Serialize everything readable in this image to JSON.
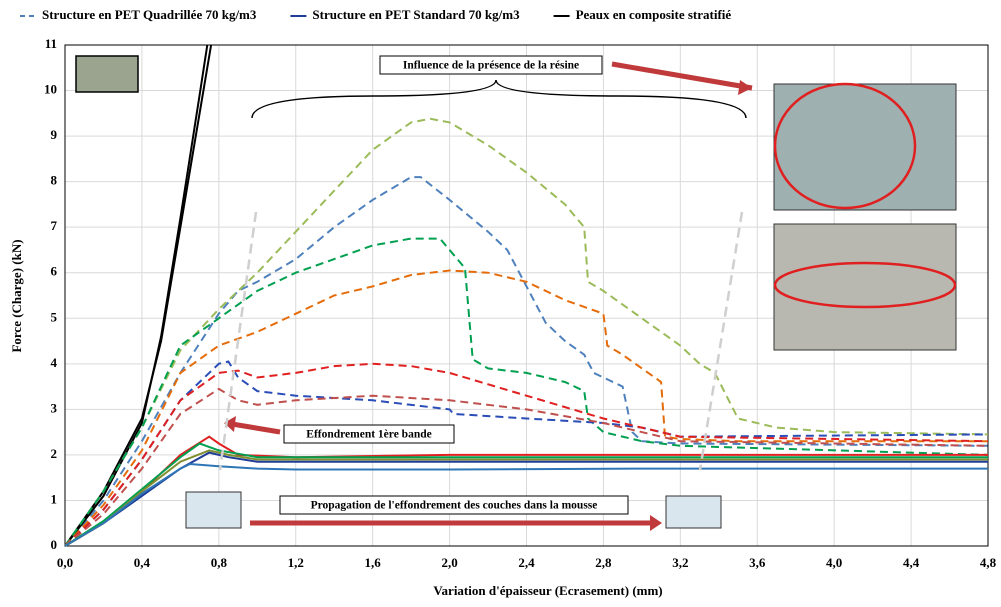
{
  "chart_data": {
    "type": "line",
    "x_label": "Variation d'épaisseur (Ecrasement) (mm)",
    "y_label": "Force (Charge) (kN)",
    "xlim": [
      0,
      4.8
    ],
    "ylim": [
      0,
      11
    ],
    "xticks": [
      {
        "value": 0,
        "label": "0,0"
      },
      {
        "value": 0.4,
        "label": "0,4"
      },
      {
        "value": 0.8,
        "label": "0,8"
      },
      {
        "value": 1.2,
        "label": "1,2"
      },
      {
        "value": 1.6,
        "label": "1,6"
      },
      {
        "value": 2.0,
        "label": "2,0"
      },
      {
        "value": 2.4,
        "label": "2,4"
      },
      {
        "value": 2.8,
        "label": "2,8"
      },
      {
        "value": 3.2,
        "label": "3,2"
      },
      {
        "value": 3.6,
        "label": "3,6"
      },
      {
        "value": 4.0,
        "label": "4,0"
      },
      {
        "value": 4.4,
        "label": "4,4"
      },
      {
        "value": 4.8,
        "label": "4,8"
      }
    ],
    "yticks": [
      0,
      1,
      2,
      3,
      4,
      5,
      6,
      7,
      8,
      9,
      10,
      11
    ],
    "grid": true,
    "annotations": [
      "Influence de la présence de la résine",
      "Effondrement 1ère bande",
      "Propagation de l'effondrement des couches dans la mousse"
    ],
    "series": [
      {
        "name": "Structure en PET Quadrillée 70 kg/m3",
        "color": "#4f81bd",
        "dashed": true,
        "x": [
          0,
          0.2,
          0.4,
          0.6,
          0.8,
          0.9,
          1.0,
          1.2,
          1.4,
          1.6,
          1.8,
          1.85,
          2.0,
          2.2,
          2.3,
          2.4,
          2.5,
          2.6,
          2.7,
          2.75,
          2.9,
          2.95,
          3.0,
          3.2,
          4.8
        ],
        "values": [
          0,
          1.0,
          2.3,
          3.8,
          5.1,
          5.6,
          5.8,
          6.3,
          7.0,
          7.6,
          8.1,
          8.1,
          7.6,
          6.9,
          6.5,
          5.7,
          4.9,
          4.5,
          4.2,
          3.8,
          3.5,
          2.5,
          2.3,
          2.25,
          2.2
        ]
      },
      {
        "name": "Structure en PET Standard 70 kg/m3",
        "color": "#1f3d99",
        "dashed": false,
        "x": [
          0,
          0.2,
          0.4,
          0.6,
          0.75,
          0.85,
          1.0,
          1.2,
          2.0,
          3.0,
          4.8
        ],
        "values": [
          0,
          0.5,
          1.1,
          1.7,
          2.05,
          1.95,
          1.85,
          1.85,
          1.85,
          1.85,
          1.85
        ]
      },
      {
        "name": "Peaux en composite stratifié",
        "color": "#000000",
        "dashed": false,
        "x": [
          0,
          0.2,
          0.4,
          0.5,
          0.6,
          0.7,
          0.76
        ],
        "values": [
          0,
          1.2,
          2.8,
          4.5,
          7,
          9.5,
          11
        ]
      },
      {
        "color": "#000000",
        "dashed": false,
        "x": [
          0,
          0.2,
          0.4,
          0.5,
          0.6,
          0.7,
          0.74
        ],
        "values": [
          0,
          1.1,
          2.7,
          4.6,
          7.2,
          9.9,
          11
        ]
      },
      {
        "color": "#9bbb59",
        "dashed": true,
        "x": [
          0,
          0.2,
          0.4,
          0.6,
          0.8,
          1.0,
          1.2,
          1.4,
          1.6,
          1.8,
          1.9,
          2.0,
          2.2,
          2.4,
          2.6,
          2.7,
          2.72,
          2.8,
          3.0,
          3.2,
          3.3,
          3.38,
          3.5,
          3.7,
          4.0,
          4.8
        ],
        "values": [
          0,
          1.2,
          2.6,
          4.3,
          5.2,
          6.0,
          6.9,
          7.8,
          8.7,
          9.3,
          9.38,
          9.3,
          8.8,
          8.2,
          7.5,
          7.0,
          5.8,
          5.6,
          5.0,
          4.4,
          4.0,
          3.8,
          2.8,
          2.6,
          2.5,
          2.45
        ]
      },
      {
        "color": "#00a050",
        "dashed": true,
        "x": [
          0,
          0.2,
          0.4,
          0.6,
          0.8,
          1.0,
          1.2,
          1.4,
          1.6,
          1.8,
          1.95,
          2.0,
          2.08,
          2.12,
          2.2,
          2.4,
          2.6,
          2.7,
          2.72,
          2.8,
          3.0,
          3.2,
          4.8
        ],
        "values": [
          0,
          1.2,
          2.6,
          4.4,
          5.0,
          5.6,
          6.0,
          6.3,
          6.6,
          6.75,
          6.75,
          6.5,
          6.1,
          4.1,
          3.9,
          3.8,
          3.6,
          3.4,
          2.8,
          2.5,
          2.3,
          2.2,
          2.0
        ]
      },
      {
        "color": "#e46c0a",
        "dashed": true,
        "x": [
          0,
          0.2,
          0.4,
          0.6,
          0.8,
          1.0,
          1.2,
          1.4,
          1.6,
          1.8,
          2.0,
          2.2,
          2.4,
          2.6,
          2.8,
          2.82,
          2.9,
          3.1,
          3.12,
          3.2,
          3.5,
          4.8
        ],
        "values": [
          0,
          0.9,
          2.1,
          3.8,
          4.4,
          4.7,
          5.1,
          5.5,
          5.7,
          5.95,
          6.05,
          6.0,
          5.8,
          5.4,
          5.1,
          4.4,
          4.2,
          3.6,
          2.4,
          2.35,
          2.3,
          2.3
        ]
      },
      {
        "color": "#2a4db8",
        "dashed": true,
        "x": [
          0,
          0.2,
          0.4,
          0.6,
          0.8,
          0.85,
          0.9,
          1.0,
          1.2,
          1.6,
          2.0,
          2.02,
          2.4,
          2.8,
          3.0,
          3.2,
          4.8
        ],
        "values": [
          0,
          0.8,
          1.9,
          3.2,
          4.0,
          4.05,
          3.7,
          3.4,
          3.3,
          3.2,
          3.0,
          2.9,
          2.8,
          2.7,
          2.6,
          2.4,
          2.45
        ]
      },
      {
        "color": "#e02020",
        "dashed": true,
        "x": [
          0,
          0.2,
          0.4,
          0.6,
          0.8,
          0.9,
          1.0,
          1.2,
          1.4,
          1.6,
          1.8,
          2.0,
          2.4,
          2.8,
          3.0,
          3.2,
          4.8
        ],
        "values": [
          0,
          0.8,
          1.9,
          3.2,
          3.8,
          3.85,
          3.7,
          3.8,
          3.95,
          4.0,
          3.95,
          3.8,
          3.3,
          2.8,
          2.6,
          2.4,
          2.3
        ]
      },
      {
        "color": "#c0504d",
        "dashed": true,
        "x": [
          0,
          0.2,
          0.4,
          0.6,
          0.8,
          0.9,
          1.0,
          1.2,
          1.6,
          2.0,
          2.4,
          2.8,
          3.2,
          4.8
        ],
        "values": [
          0,
          0.7,
          1.7,
          2.9,
          3.45,
          3.2,
          3.1,
          3.2,
          3.3,
          3.2,
          3.0,
          2.7,
          2.3,
          2.2
        ]
      },
      {
        "color": "#e02020",
        "dashed": false,
        "x": [
          0,
          0.2,
          0.4,
          0.6,
          0.75,
          0.8,
          0.9,
          1.2,
          2.0,
          3.0,
          4.8
        ],
        "values": [
          0,
          0.5,
          1.2,
          2.0,
          2.4,
          2.25,
          2.0,
          1.95,
          2.0,
          2.0,
          2.0
        ]
      },
      {
        "color": "#00a050",
        "dashed": false,
        "x": [
          0,
          0.2,
          0.4,
          0.6,
          0.7,
          0.8,
          1.0,
          1.2,
          2.0,
          3.0,
          4.8
        ],
        "values": [
          0,
          0.55,
          1.25,
          1.95,
          2.25,
          2.1,
          1.95,
          1.95,
          1.95,
          1.95,
          1.95
        ]
      },
      {
        "color": "#7f8f30",
        "dashed": false,
        "x": [
          0,
          0.2,
          0.4,
          0.6,
          0.75,
          0.85,
          1.0,
          1.2,
          2.0,
          3.0,
          4.8
        ],
        "values": [
          0,
          0.5,
          1.2,
          1.85,
          2.1,
          2.0,
          1.9,
          1.9,
          1.9,
          1.9,
          1.9
        ]
      },
      {
        "color": "#2e75b6",
        "dashed": false,
        "x": [
          0,
          0.2,
          0.4,
          0.6,
          0.65,
          0.8,
          1.0,
          1.2,
          2.0,
          3.0,
          4.8
        ],
        "values": [
          0,
          0.5,
          1.15,
          1.7,
          1.8,
          1.75,
          1.7,
          1.68,
          1.68,
          1.7,
          1.7
        ]
      }
    ]
  }
}
